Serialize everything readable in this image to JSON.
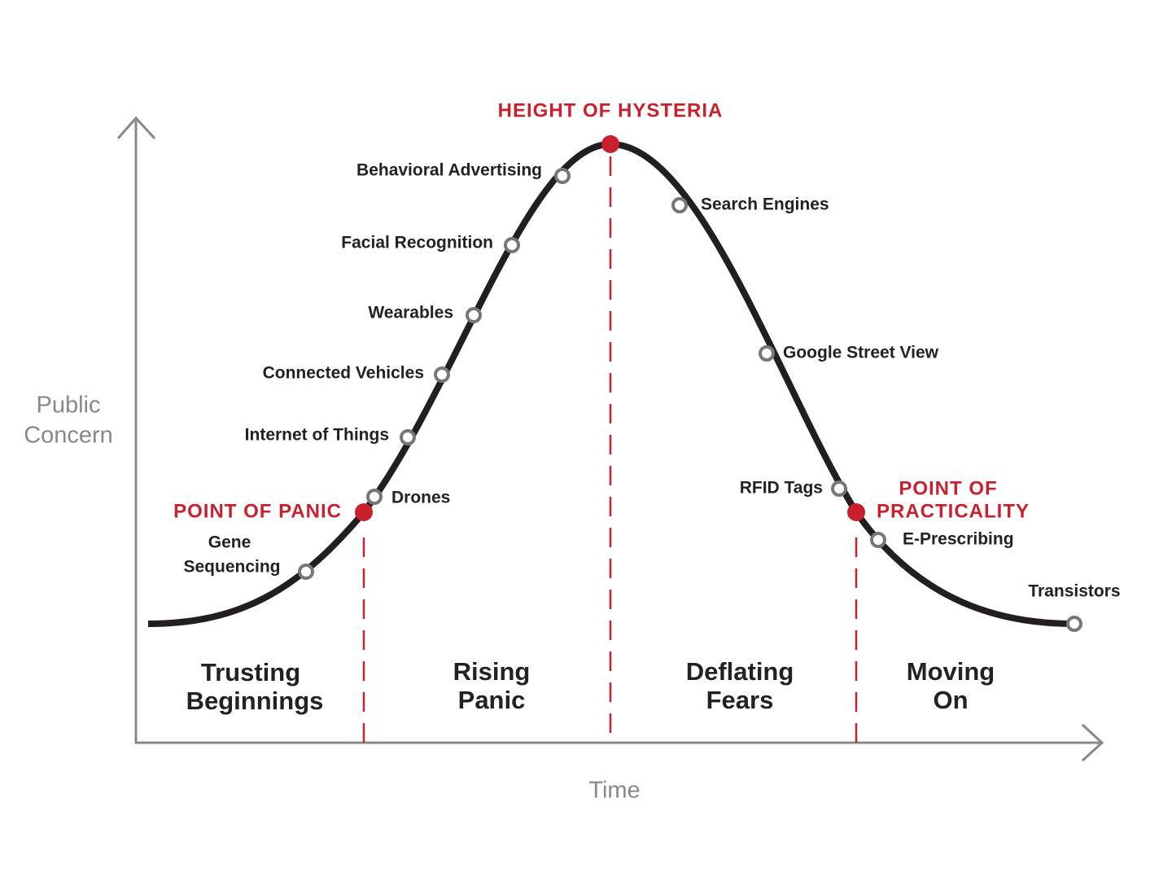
{
  "axes": {
    "y_label": [
      "Public",
      "Concern"
    ],
    "x_label": "Time"
  },
  "milestones": [
    {
      "lines": [
        "POINT OF PANIC"
      ]
    },
    {
      "lines": [
        "HEIGHT OF HYSTERIA"
      ]
    },
    {
      "lines": [
        "POINT OF",
        "PRACTICALITY"
      ]
    }
  ],
  "technologies": [
    {
      "lines": [
        "Gene",
        "Sequencing"
      ]
    },
    {
      "lines": [
        "Drones"
      ]
    },
    {
      "lines": [
        "Internet of Things"
      ]
    },
    {
      "lines": [
        "Connected Vehicles"
      ]
    },
    {
      "lines": [
        "Wearables"
      ]
    },
    {
      "lines": [
        "Facial Recognition"
      ]
    },
    {
      "lines": [
        "Behavioral Advertising"
      ]
    },
    {
      "lines": [
        "Search Engines"
      ]
    },
    {
      "lines": [
        "Google Street View"
      ]
    },
    {
      "lines": [
        "RFID Tags"
      ]
    },
    {
      "lines": [
        "E-Prescribing"
      ]
    },
    {
      "lines": [
        "Transistors"
      ]
    }
  ],
  "phases": [
    {
      "lines": [
        "Trusting",
        "Beginnings"
      ]
    },
    {
      "lines": [
        "Rising",
        "Panic"
      ]
    },
    {
      "lines": [
        "Deflating",
        "Fears"
      ]
    },
    {
      "lines": [
        "Moving",
        "On"
      ]
    }
  ]
}
